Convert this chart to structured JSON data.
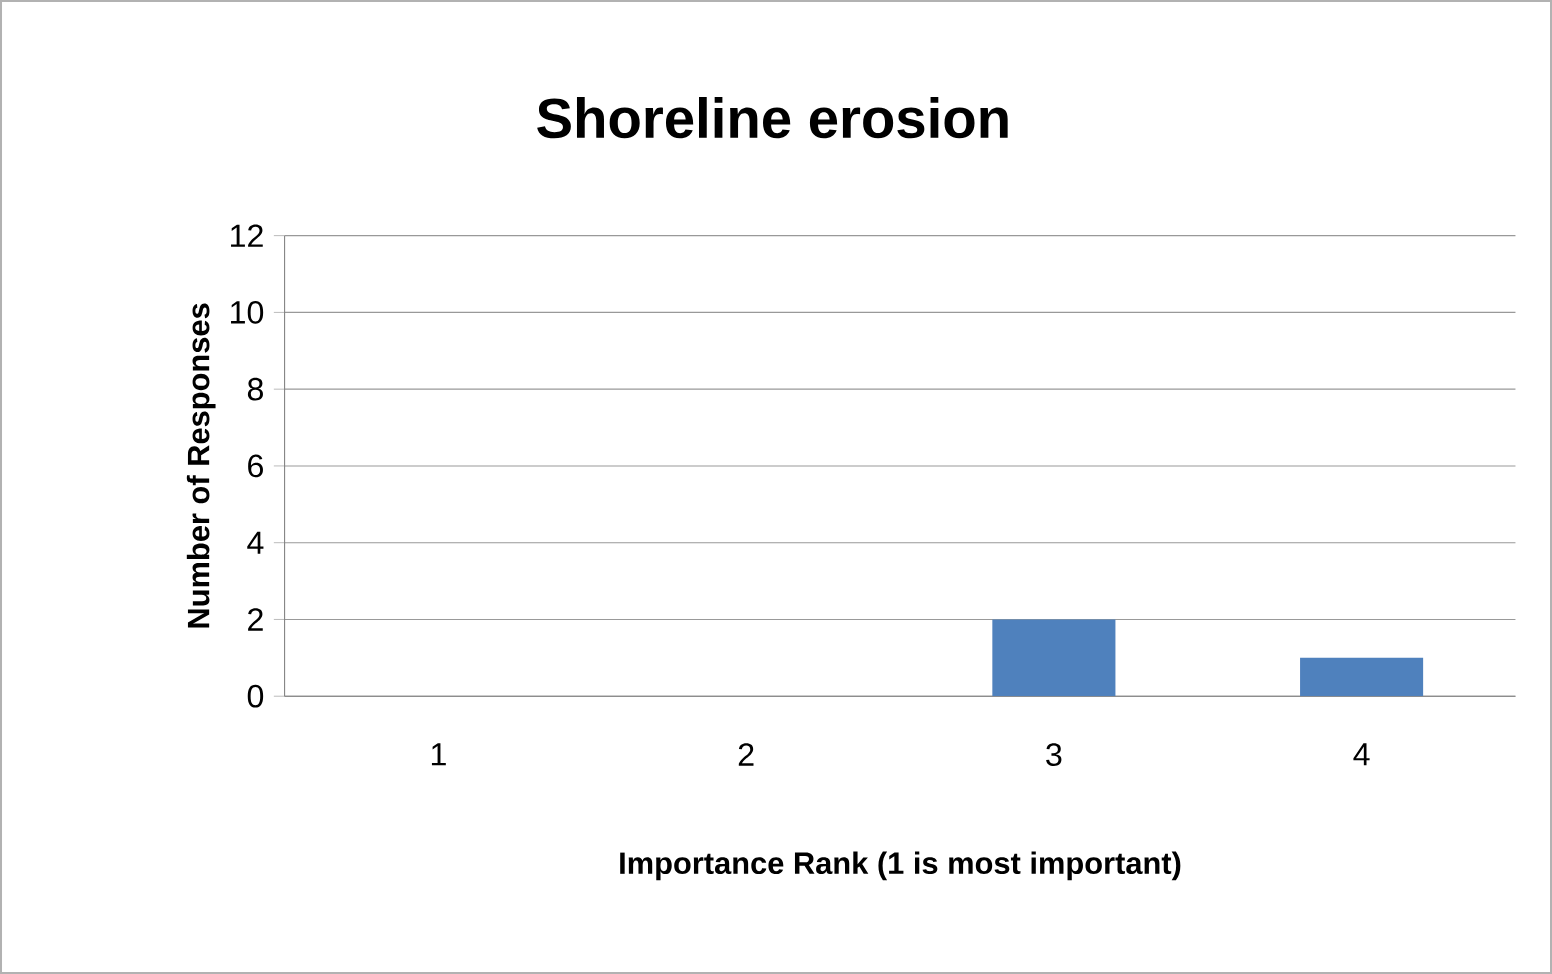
{
  "chart_data": {
    "type": "bar",
    "title": "Shoreline erosion",
    "xlabel": "Importance Rank (1 is most important)",
    "ylabel": "Number of Responses",
    "categories": [
      "1",
      "2",
      "3",
      "4"
    ],
    "values": [
      0,
      0,
      2,
      1
    ],
    "color": "#4f81bd",
    "ylim": [
      0,
      12
    ],
    "yticks": [
      0,
      2,
      4,
      6,
      8,
      10,
      12
    ],
    "grid": "y"
  }
}
